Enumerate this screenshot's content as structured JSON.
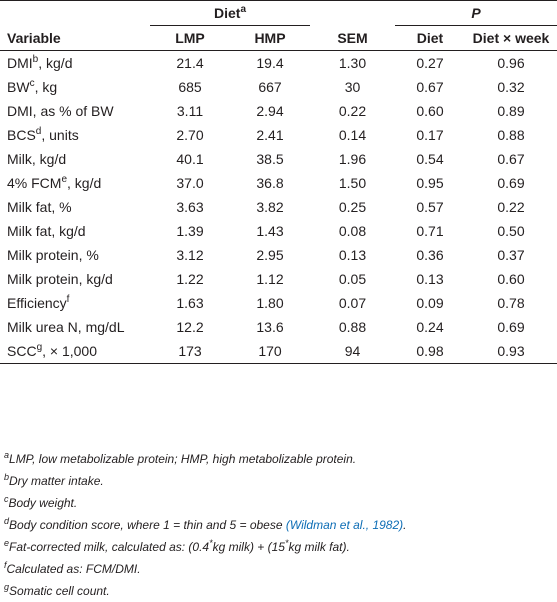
{
  "header": {
    "diet_group": "Diet",
    "diet_group_sup": "a",
    "p_group": "P",
    "col_variable": "Variable",
    "col_lmp": "LMP",
    "col_hmp": "HMP",
    "col_sem": "SEM",
    "col_diet": "Diet",
    "col_diet_week": "Diet × week"
  },
  "rows": [
    {
      "label": "DMI",
      "sup": "b",
      "suffix": ", kg/d",
      "lmp": "21.4",
      "hmp": "19.4",
      "sem": "1.30",
      "diet": "0.27",
      "dw": "0.96"
    },
    {
      "label": "BW",
      "sup": "c",
      "suffix": ", kg",
      "lmp": "685",
      "hmp": "667",
      "sem": "30",
      "diet": "0.67",
      "dw": "0.32"
    },
    {
      "label": "DMI, as % of BW",
      "sup": "",
      "suffix": "",
      "lmp": "3.11",
      "hmp": "2.94",
      "sem": "0.22",
      "diet": "0.60",
      "dw": "0.89"
    },
    {
      "label": "BCS",
      "sup": "d",
      "suffix": ", units",
      "lmp": "2.70",
      "hmp": "2.41",
      "sem": "0.14",
      "diet": "0.17",
      "dw": "0.88"
    },
    {
      "label": "Milk, kg/d",
      "sup": "",
      "suffix": "",
      "lmp": "40.1",
      "hmp": "38.5",
      "sem": "1.96",
      "diet": "0.54",
      "dw": "0.67"
    },
    {
      "label": "4% FCM",
      "sup": "e",
      "suffix": ", kg/d",
      "lmp": "37.0",
      "hmp": "36.8",
      "sem": "1.50",
      "diet": "0.95",
      "dw": "0.69"
    },
    {
      "label": "Milk fat, %",
      "sup": "",
      "suffix": "",
      "lmp": "3.63",
      "hmp": "3.82",
      "sem": "0.25",
      "diet": "0.57",
      "dw": "0.22"
    },
    {
      "label": "Milk fat, kg/d",
      "sup": "",
      "suffix": "",
      "lmp": "1.39",
      "hmp": "1.43",
      "sem": "0.08",
      "diet": "0.71",
      "dw": "0.50"
    },
    {
      "label": "Milk protein, %",
      "sup": "",
      "suffix": "",
      "lmp": "3.12",
      "hmp": "2.95",
      "sem": "0.13",
      "diet": "0.36",
      "dw": "0.37"
    },
    {
      "label": "Milk protein, kg/d",
      "sup": "",
      "suffix": "",
      "lmp": "1.22",
      "hmp": "1.12",
      "sem": "0.05",
      "diet": "0.13",
      "dw": "0.60"
    },
    {
      "label": "Efficiency",
      "sup": "f",
      "suffix": "",
      "lmp": "1.63",
      "hmp": "1.80",
      "sem": "0.07",
      "diet": "0.09",
      "dw": "0.78"
    },
    {
      "label": "Milk urea N, mg/dL",
      "sup": "",
      "suffix": "",
      "lmp": "12.2",
      "hmp": "13.6",
      "sem": "0.88",
      "diet": "0.24",
      "dw": "0.69"
    },
    {
      "label": "SCC",
      "sup": "g",
      "suffix": ", × 1,000",
      "lmp": "173",
      "hmp": "170",
      "sem": "94",
      "diet": "0.98",
      "dw": "0.93"
    }
  ],
  "footnotes": [
    {
      "mark": "a",
      "text": "LMP, low metabolizable protein; HMP, high metabolizable protein."
    },
    {
      "mark": "b",
      "text": "Dry matter intake."
    },
    {
      "mark": "c",
      "text": "Body weight."
    },
    {
      "mark": "d",
      "text": "Body condition score, where 1 = thin and 5 = obese ",
      "ref": "(Wildman et al., 1982)",
      "after": "."
    },
    {
      "mark": "e",
      "text_a": "Fat-corrected milk, calculated as: (0.4",
      "star1": "*",
      "text_b": "kg milk) + (15",
      "star2": "*",
      "text_c": "kg milk fat)."
    },
    {
      "mark": "f",
      "text": "Calculated as: FCM/DMI."
    },
    {
      "mark": "g",
      "text": "Somatic cell count."
    }
  ]
}
